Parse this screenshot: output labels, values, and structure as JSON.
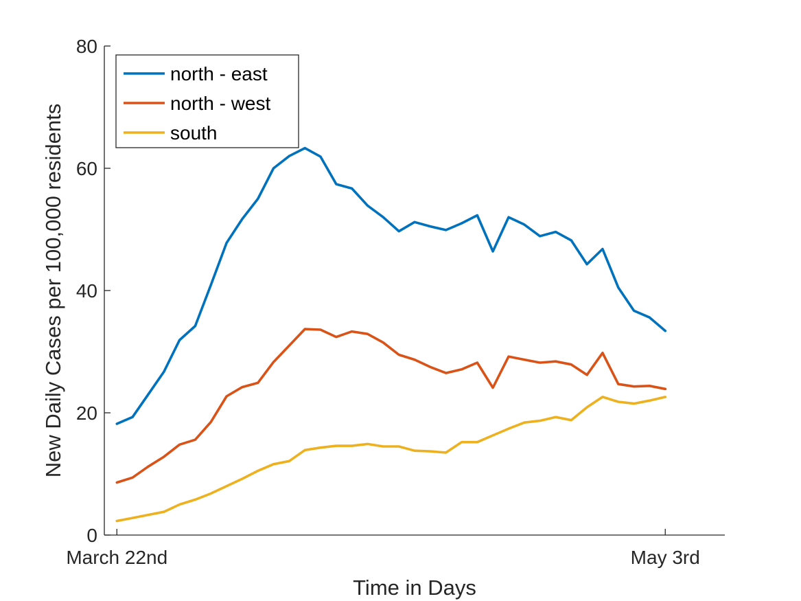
{
  "chart_data": {
    "type": "line",
    "xlabel": "Time in Days",
    "ylabel": "New Daily Cases per 100,000 residents",
    "x_tick_labels": [
      "March 22nd",
      "May 3rd"
    ],
    "x_tick_positions": [
      1,
      36
    ],
    "xlim": [
      0.2,
      39.8
    ],
    "ylim": [
      0,
      80
    ],
    "y_ticks": [
      0,
      20,
      40,
      60,
      80
    ],
    "grid": false,
    "legend_position": "top-left",
    "x": [
      1,
      2,
      3,
      4,
      5,
      6,
      7,
      8,
      9,
      10,
      11,
      12,
      13,
      14,
      15,
      16,
      17,
      18,
      19,
      20,
      21,
      22,
      23,
      24,
      25,
      26,
      27,
      28,
      29,
      30,
      31,
      32,
      33,
      34,
      35,
      36
    ],
    "series": [
      {
        "name": "north - east",
        "color": "#0072BD",
        "values": [
          18.2,
          19.3,
          23.0,
          26.7,
          31.9,
          34.2,
          40.9,
          47.8,
          51.7,
          55.0,
          60.0,
          62.0,
          63.3,
          61.9,
          57.4,
          56.7,
          53.9,
          52.0,
          49.7,
          51.2,
          50.5,
          49.9,
          51.0,
          52.3,
          46.4,
          52.0,
          50.8,
          48.9,
          49.6,
          48.2,
          44.3,
          46.8,
          40.5,
          36.7,
          35.6,
          33.4
        ]
      },
      {
        "name": "north - west",
        "color": "#D95319",
        "values": [
          8.6,
          9.4,
          11.2,
          12.8,
          14.8,
          15.6,
          18.5,
          22.7,
          24.2,
          24.9,
          28.3,
          31.0,
          33.7,
          33.6,
          32.4,
          33.3,
          32.9,
          31.5,
          29.5,
          28.7,
          27.5,
          26.5,
          27.1,
          28.2,
          24.1,
          29.2,
          28.7,
          28.2,
          28.4,
          27.9,
          26.2,
          29.8,
          24.7,
          24.3,
          24.4,
          23.9
        ]
      },
      {
        "name": "south",
        "color": "#EDB120",
        "values": [
          2.3,
          2.8,
          3.3,
          3.8,
          5.0,
          5.8,
          6.8,
          8.0,
          9.2,
          10.5,
          11.6,
          12.1,
          13.9,
          14.3,
          14.6,
          14.6,
          14.9,
          14.5,
          14.5,
          13.8,
          13.7,
          13.5,
          15.2,
          15.2,
          16.3,
          17.4,
          18.4,
          18.7,
          19.3,
          18.8,
          20.9,
          22.6,
          21.8,
          21.5,
          22.0,
          22.6
        ]
      }
    ]
  }
}
